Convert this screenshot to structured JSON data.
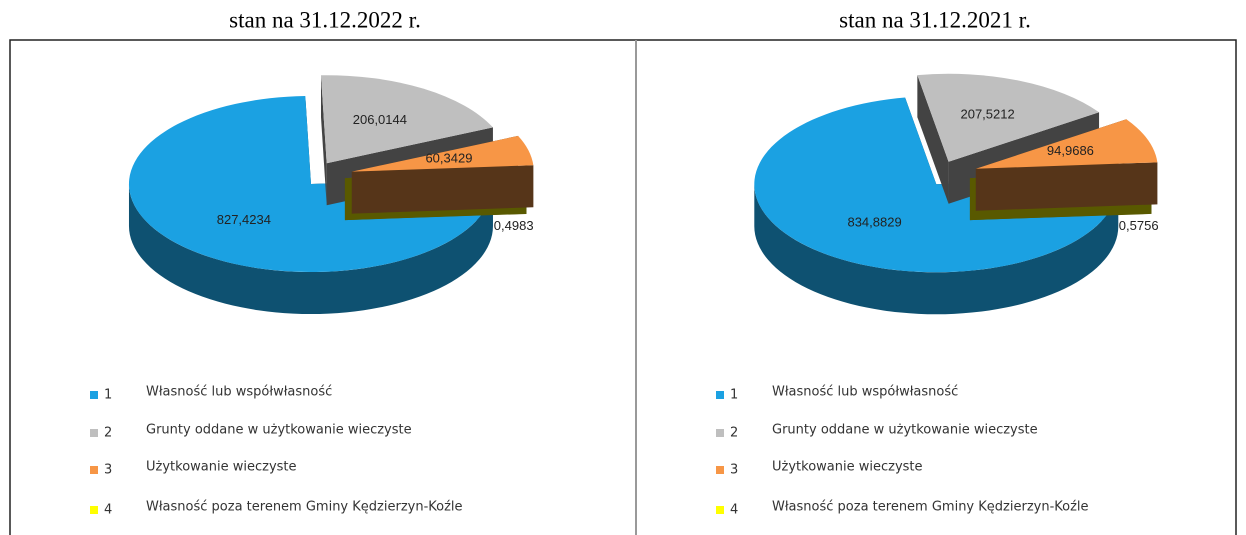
{
  "chart_data": [
    {
      "type": "pie",
      "title": "stan na 31.12.2022 r.",
      "categories": [
        "Własność lub współwłasność",
        "Grunty oddane w użytkowanie wieczyste",
        "Użytkowanie wieczyste",
        "Własność poza terenem Gminy Kędzierzyn-Koźle"
      ],
      "legend_numbers": [
        "1",
        "2",
        "3",
        "4"
      ],
      "values": [
        827.4234,
        206.0144,
        60.3429,
        0.4983
      ],
      "value_labels": [
        "827,4234",
        "206,0144",
        "60,3429",
        "0,4983"
      ],
      "colors": [
        "#1ba1e2",
        "#bfbfbf",
        "#f79646",
        "#ffff00"
      ]
    },
    {
      "type": "pie",
      "title": "stan na 31.12.2021 r.",
      "categories": [
        "Własność lub współwłasność",
        "Grunty oddane w użytkowanie wieczyste",
        "Użytkowanie wieczyste",
        "Własność poza terenem Gminy Kędzierzyn-Koźle"
      ],
      "legend_numbers": [
        "1",
        "2",
        "3",
        "4"
      ],
      "values": [
        834.8829,
        207.5212,
        94.9686,
        0.5756
      ],
      "value_labels": [
        "834,8829",
        "207,5212",
        "94,9686",
        "0,5756"
      ],
      "colors": [
        "#1ba1e2",
        "#bfbfbf",
        "#f79646",
        "#ffff00"
      ]
    }
  ]
}
